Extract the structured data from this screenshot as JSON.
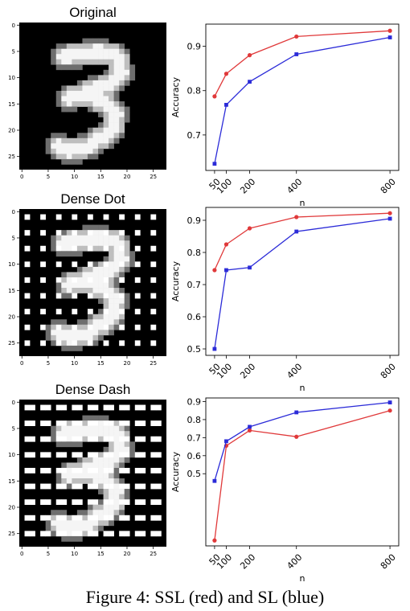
{
  "colors": {
    "ssl": "#e0393a",
    "sl": "#2b2bd8",
    "image_bg": "#000000"
  },
  "caption": "Figure 4: SSL (red) and SL (blue)",
  "chart_data": [
    {
      "type": "image",
      "title": "Original",
      "mask": "none",
      "xticks": [
        "0",
        "5",
        "10",
        "15",
        "20",
        "25"
      ],
      "yticks": [
        "0",
        "5",
        "10",
        "15",
        "20",
        "25"
      ],
      "size": 28
    },
    {
      "type": "line",
      "x": [
        50,
        100,
        200,
        400,
        800
      ],
      "x_ticklabels": [
        "50",
        "100",
        "200",
        "400",
        "800"
      ],
      "xlabel": "n",
      "ylabel": "Accuracy",
      "ylim": [
        0.62,
        0.95
      ],
      "y_ticks": [
        "0.7",
        "0.8",
        "0.9"
      ],
      "series": [
        {
          "color": "#e0393a",
          "marker": "circle",
          "values": [
            0.787,
            0.838,
            0.88,
            0.922,
            0.935
          ]
        },
        {
          "color": "#2b2bd8",
          "marker": "square",
          "values": [
            0.635,
            0.768,
            0.82,
            0.882,
            0.92
          ]
        }
      ]
    },
    {
      "type": "image",
      "title": "Dense Dot",
      "mask": "dot",
      "xticks": [
        "0",
        "5",
        "10",
        "15",
        "20",
        "25"
      ],
      "yticks": [
        "0",
        "5",
        "10",
        "15",
        "20",
        "25"
      ],
      "size": 28
    },
    {
      "type": "line",
      "x": [
        50,
        100,
        200,
        400,
        800
      ],
      "x_ticklabels": [
        "50",
        "100",
        "200",
        "400",
        "800"
      ],
      "xlabel": "n",
      "ylabel": "Accuracy",
      "ylim": [
        0.48,
        0.94
      ],
      "y_ticks": [
        "0.5",
        "0.6",
        "0.7",
        "0.8",
        "0.9"
      ],
      "series": [
        {
          "color": "#e0393a",
          "marker": "circle",
          "values": [
            0.745,
            0.825,
            0.875,
            0.91,
            0.922
          ]
        },
        {
          "color": "#2b2bd8",
          "marker": "square",
          "values": [
            0.5,
            0.745,
            0.753,
            0.865,
            0.905
          ]
        }
      ]
    },
    {
      "type": "image",
      "title": "Dense Dash",
      "mask": "dash",
      "xticks": [
        "0",
        "5",
        "10",
        "15",
        "20",
        "25"
      ],
      "yticks": [
        "0",
        "5",
        "10",
        "15",
        "20",
        "25"
      ],
      "size": 28
    },
    {
      "type": "line",
      "x": [
        50,
        100,
        200,
        400,
        800
      ],
      "x_ticklabels": [
        "50",
        "100",
        "200",
        "400",
        "800"
      ],
      "xlabel": "n",
      "ylabel": "Accuracy",
      "ylim": [
        0.1,
        0.92
      ],
      "y_ticks": [
        "0.5",
        "0.6",
        "0.7",
        "0.8",
        "0.9"
      ],
      "series": [
        {
          "color": "#e0393a",
          "marker": "circle",
          "values": [
            0.13,
            0.655,
            0.74,
            0.705,
            0.85
          ]
        },
        {
          "color": "#2b2bd8",
          "marker": "square",
          "values": [
            0.46,
            0.68,
            0.76,
            0.84,
            0.895
          ]
        }
      ]
    }
  ]
}
